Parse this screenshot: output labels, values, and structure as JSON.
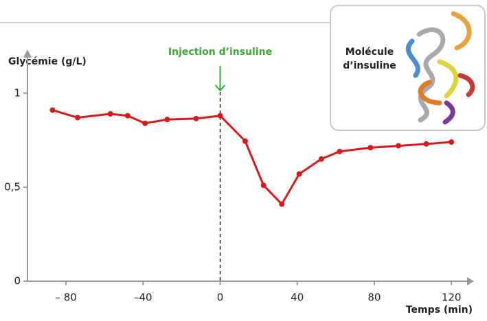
{
  "chart_data": {
    "type": "line",
    "y_label": "Glycémie (g/L)",
    "x_label": "Temps (min)",
    "annotation": "Injection d’insuline",
    "annotation_x": 0,
    "annotation_color": "#3aaa35",
    "inset_label": [
      "Molécule",
      "d’insuline"
    ],
    "series": [
      {
        "color": "#d7191c",
        "x": [
          -87,
          -74,
          -57,
          -48,
          -39,
          -27.5,
          -12.5,
          0,
          13,
          22.5,
          32,
          41,
          52.5,
          62,
          78,
          92.5,
          107,
          120
        ],
        "values": [
          0.91,
          0.87,
          0.89,
          0.88,
          0.84,
          0.86,
          0.865,
          0.88,
          0.745,
          0.51,
          0.41,
          0.57,
          0.65,
          0.69,
          0.71,
          0.72,
          0.73,
          0.74
        ]
      }
    ],
    "xlim": [
      -100,
      131
    ],
    "ylim": [
      0,
      1.2
    ],
    "xticks": [
      {
        "value": -80,
        "label": "– 80"
      },
      {
        "value": -40,
        "label": "–40"
      },
      0,
      40,
      80,
      120
    ],
    "yticks": [
      0,
      {
        "value": 0.5,
        "label": "0,5"
      },
      1
    ]
  }
}
